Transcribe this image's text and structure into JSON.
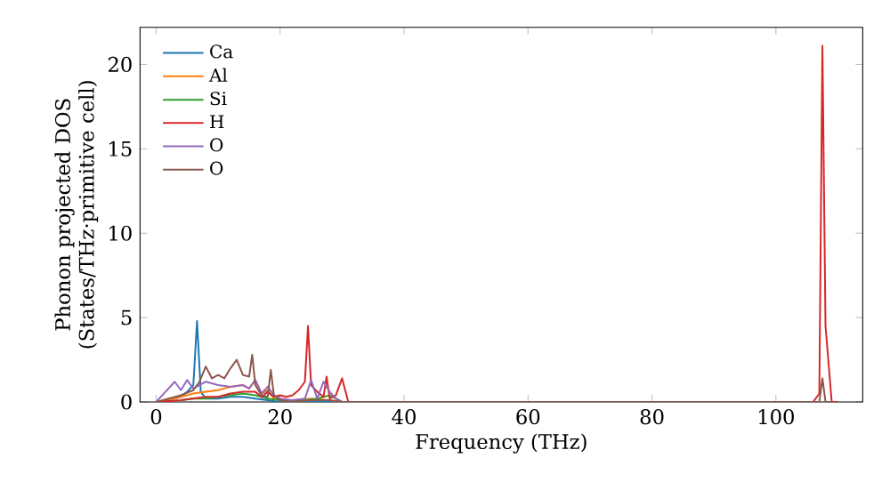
{
  "chart_data": {
    "type": "line",
    "xlabel": "Frequency (THz)",
    "ylabel": "Phonon projected DOS (States/THz·primitive cell)",
    "xlim": [
      -2.6,
      114
    ],
    "ylim": [
      0,
      22.2
    ],
    "xticks": [
      0,
      20,
      40,
      60,
      80,
      100
    ],
    "yticks": [
      0,
      5,
      10,
      15,
      20
    ],
    "legend": "top left",
    "series": [
      {
        "name": "Ca",
        "color": "#1f77b4",
        "x": [
          0,
          2,
          4,
          5,
          6,
          6.6,
          7.2,
          8,
          10,
          12,
          14,
          16,
          18,
          20,
          25,
          30,
          31
        ],
        "values": [
          0,
          0.1,
          0.3,
          0.6,
          1.0,
          4.8,
          0.6,
          0.2,
          0.2,
          0.3,
          0.3,
          0.2,
          0.1,
          0,
          0,
          0,
          0
        ]
      },
      {
        "name": "Al",
        "color": "#ff7f0e",
        "x": [
          0,
          2,
          4,
          6,
          8,
          10,
          12,
          14,
          15,
          16,
          17,
          18,
          19,
          20,
          22,
          25,
          28,
          30
        ],
        "values": [
          0,
          0.1,
          0.3,
          0.5,
          0.6,
          0.7,
          0.9,
          1.0,
          0.8,
          1.3,
          0.5,
          0.7,
          0.2,
          0.1,
          0.1,
          0.2,
          0.1,
          0
        ]
      },
      {
        "name": "Si",
        "color": "#2ca02c",
        "x": [
          4,
          6,
          8,
          10,
          12,
          14,
          16,
          18,
          20,
          24,
          26,
          28,
          30
        ],
        "values": [
          0.1,
          0.2,
          0.2,
          0.3,
          0.4,
          0.5,
          0.4,
          0.2,
          0.1,
          0.1,
          0.2,
          0.4,
          0
        ]
      },
      {
        "name": "H",
        "color": "#d62728",
        "x": [
          0,
          4,
          8,
          10,
          12,
          14,
          16,
          17,
          18,
          19,
          20,
          21,
          22,
          23,
          24,
          24.5,
          25,
          26,
          27,
          27.5,
          28,
          29,
          30,
          31,
          106,
          107,
          107.5,
          108,
          109,
          110
        ],
        "values": [
          0,
          0.1,
          0.3,
          0.3,
          0.5,
          0.6,
          0.6,
          0.3,
          0.6,
          0.3,
          0.4,
          0.3,
          0.4,
          0.7,
          1.2,
          4.5,
          1.0,
          0.6,
          0.3,
          1.5,
          0.2,
          0.4,
          1.4,
          0,
          0,
          0.5,
          21.1,
          4.5,
          0,
          0
        ]
      },
      {
        "name": "O",
        "color": "#9467bd",
        "x": [
          0,
          1,
          2,
          3,
          4,
          5,
          6,
          7,
          8,
          10,
          12,
          14,
          15,
          16,
          17,
          18,
          19,
          20,
          22,
          24,
          25,
          26,
          27,
          28,
          29,
          30
        ],
        "values": [
          0,
          0.4,
          0.8,
          1.2,
          0.7,
          1.3,
          0.8,
          1.0,
          1.2,
          1.0,
          0.9,
          1.0,
          0.8,
          1.3,
          0.5,
          0.9,
          0.4,
          0.2,
          0.1,
          0.2,
          1.3,
          0.2,
          1.2,
          0.6,
          0.2,
          0
        ]
      },
      {
        "name": "O",
        "color": "#8c564b",
        "x": [
          0,
          2,
          4,
          6,
          7,
          8,
          9,
          10,
          11,
          12,
          13,
          14,
          15,
          15.5,
          16,
          17,
          18,
          18.5,
          19,
          20,
          22,
          25,
          28,
          30,
          106,
          107,
          107.5,
          108,
          109
        ],
        "values": [
          0,
          0.2,
          0.4,
          0.7,
          1.2,
          2.1,
          1.4,
          1.6,
          1.4,
          2.0,
          2.5,
          1.6,
          1.5,
          2.8,
          1.0,
          0.4,
          0.3,
          1.9,
          0.4,
          0.1,
          0,
          0.1,
          0.1,
          0,
          0,
          0,
          1.4,
          0,
          0
        ]
      }
    ]
  }
}
